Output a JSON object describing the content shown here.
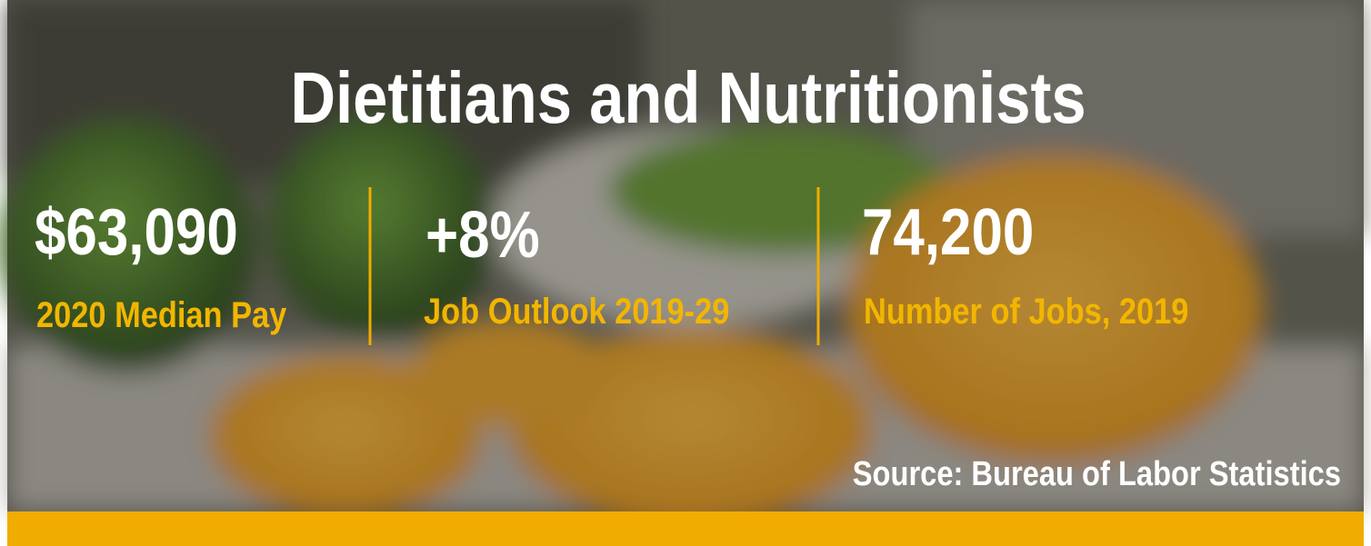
{
  "header": {
    "title": "Dietitians and Nutritionists"
  },
  "stats": [
    {
      "value": "$63,090",
      "label": "2020 Median Pay"
    },
    {
      "value": "+8%",
      "label": "Job Outlook 2019-29"
    },
    {
      "value": "74,200",
      "label": "Number of Jobs, 2019"
    }
  ],
  "source": "Source: Bureau of Labor Statistics"
}
